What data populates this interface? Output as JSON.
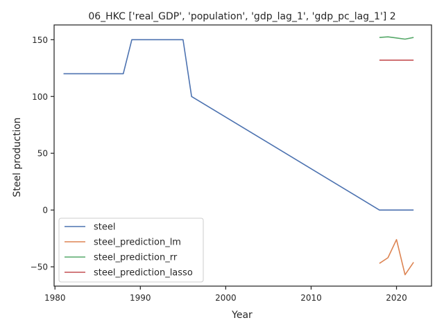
{
  "chart_data": {
    "type": "line",
    "title": "06_HKC ['real_GDP', 'population', 'gdp_lag_1', 'gdp_pc_lag_1'] 2",
    "xlabel": "Year",
    "ylabel": "Steel production",
    "xlim": [
      1979.9,
      2024.1
    ],
    "ylim": [
      -67,
      163
    ],
    "xticks": [
      1980,
      1990,
      2000,
      2010,
      2020
    ],
    "yticks": [
      -50,
      0,
      50,
      100,
      150
    ],
    "grid": false,
    "legend_position": "lower-left",
    "series": [
      {
        "name": "steel",
        "color": "#4c72b0",
        "x": [
          1981,
          1988,
          1989,
          1995,
          1996,
          2018,
          2022
        ],
        "y": [
          120,
          120,
          150,
          150,
          100,
          0,
          0
        ]
      },
      {
        "name": "steel_prediction_lm",
        "color": "#dd8452",
        "x": [
          2018,
          2019,
          2020,
          2021,
          2022
        ],
        "y": [
          -47,
          -42,
          -26,
          -57,
          -46
        ]
      },
      {
        "name": "steel_prediction_rr",
        "color": "#55a868",
        "x": [
          2018,
          2019,
          2020,
          2021,
          2022
        ],
        "y": [
          152,
          152.5,
          151.5,
          150.5,
          152
        ]
      },
      {
        "name": "steel_prediction_lasso",
        "color": "#c44e52",
        "x": [
          2018,
          2019,
          2020,
          2021,
          2022
        ],
        "y": [
          132,
          132,
          132,
          132,
          132
        ]
      }
    ]
  }
}
